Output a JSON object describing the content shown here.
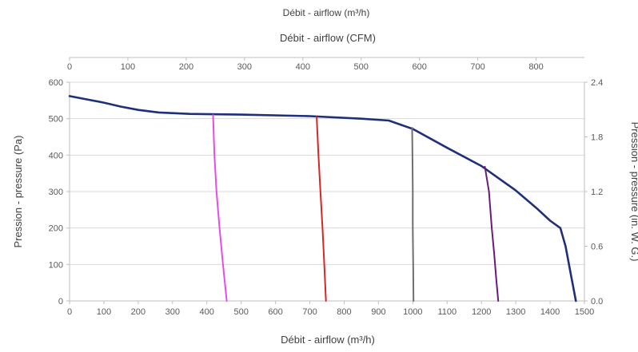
{
  "chart_data": {
    "type": "line",
    "top_caption": "Débit - airflow (m³/h)",
    "x_secondary_label": "Débit - airflow (CFM)",
    "xlabel": "Débit - airflow (m³/h)",
    "ylabel": "Pression - pressure (Pa)",
    "y2label": "Pression - pressure (in. W. G.)",
    "xlim": [
      0,
      1500
    ],
    "ylim": [
      0,
      600
    ],
    "x2lim": [
      0,
      882.9
    ],
    "y2lim": [
      0,
      2.4
    ],
    "x_ticks": [
      "0",
      "100",
      "200",
      "300",
      "400",
      "500",
      "600",
      "700",
      "800",
      "900",
      "1000",
      "1100",
      "1200",
      "1300",
      "1400",
      "1500"
    ],
    "y_ticks": [
      "0",
      "100",
      "200",
      "300",
      "400",
      "500",
      "600"
    ],
    "x2_ticks": [
      "0",
      "100",
      "200",
      "300",
      "400",
      "500",
      "600",
      "700",
      "800"
    ],
    "y2_ticks": [
      "0.0",
      "0.6",
      "1.2",
      "1.8",
      "2.4"
    ],
    "grid": true,
    "colors": {
      "fan_curve": "#1f2f7a",
      "system_1": "#e64ce6",
      "system_2": "#d62728",
      "system_3": "#6e6e6e",
      "system_4": "#6a1b7a",
      "grid": "#d9d9d9",
      "axis": "#bfbfbf"
    },
    "series": [
      {
        "x": [
          0,
          50,
          100,
          150,
          200,
          260,
          350,
          500,
          700,
          850,
          930,
          1000,
          1100,
          1200,
          1300,
          1360,
          1400,
          1430,
          1445,
          1460,
          1475
        ],
        "y": [
          562,
          553,
          544,
          533,
          524,
          517,
          513,
          511,
          507,
          500,
          495,
          472,
          420,
          370,
          303,
          255,
          220,
          200,
          150,
          75,
          0
        ]
      },
      {
        "x": [
          418,
          422,
          428,
          437,
          447,
          458
        ],
        "y": [
          510,
          400,
          300,
          200,
          100,
          0
        ]
      },
      {
        "x": [
          720,
          725,
          731,
          737,
          742,
          747
        ],
        "y": [
          505,
          400,
          300,
          200,
          100,
          0
        ]
      },
      {
        "x": [
          998,
          999,
          1000,
          1000,
          1001,
          1002
        ],
        "y": [
          475,
          400,
          300,
          200,
          100,
          0
        ]
      },
      {
        "x": [
          1210,
          1222,
          1230,
          1237,
          1243,
          1249
        ],
        "y": [
          368,
          300,
          200,
          130,
          60,
          0
        ]
      }
    ]
  }
}
